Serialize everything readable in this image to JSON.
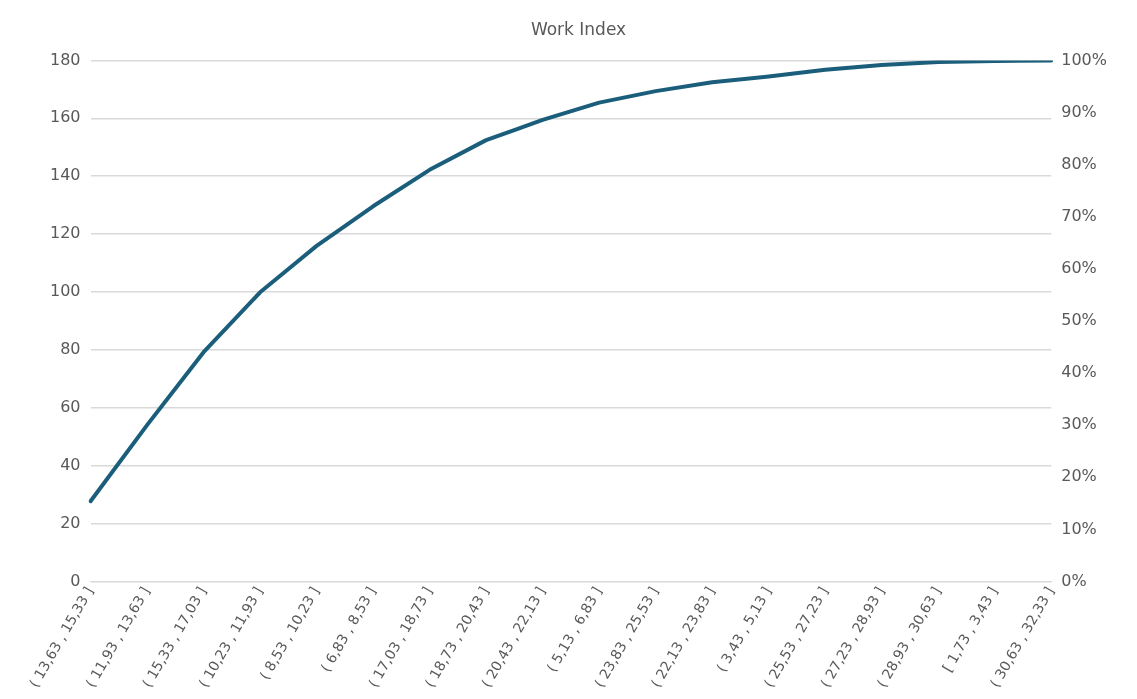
{
  "chart_data": {
    "type": "line",
    "title": "Work Index",
    "categories": [
      "( 13,63 , 15,33 ]",
      "( 11,93 , 13,63 ]",
      "( 15,33 , 17,03 ]",
      "( 10,23 , 11,93 ]",
      "( 8,53 , 10,23 ]",
      "( 6,83 , 8,53 ]",
      "( 17,03 , 18,73 ]",
      "( 18,73 , 20,43 ]",
      "( 20,43 , 22,13 ]",
      "( 5,13 , 6,83 ]",
      "( 23,83 , 25,53 ]",
      "( 22,13 , 23,83 ]",
      "( 3,43 , 5,13 ]",
      "( 25,53 , 27,23 ]",
      "( 27,23 , 28,93 ]",
      "( 28,93 , 30,63 ]",
      "[ 1,73 , 3,43 ]",
      "( 30,63 , 32,33 ]"
    ],
    "series": [
      {
        "color": "#1b5e7b",
        "axis": "y2",
        "values": [
          15.4,
          30,
          44,
          55.5,
          64.4,
          72,
          79,
          84.7,
          88.6,
          91.9,
          94.1,
          95.8,
          96.9,
          98.2,
          99.1,
          99.7,
          99.9,
          100
        ]
      }
    ],
    "ylim": [
      0,
      180
    ],
    "yticks": [
      0,
      20,
      40,
      60,
      80,
      100,
      120,
      140,
      160,
      180
    ],
    "y2lim": [
      0,
      100
    ],
    "y2ticks": [
      {
        "value": 0,
        "label": "0%"
      },
      {
        "value": 10,
        "label": "10%"
      },
      {
        "value": 20,
        "label": "20%"
      },
      {
        "value": 30,
        "label": "30%"
      },
      {
        "value": 40,
        "label": "40%"
      },
      {
        "value": 50,
        "label": "50%"
      },
      {
        "value": 60,
        "label": "60%"
      },
      {
        "value": 70,
        "label": "70%"
      },
      {
        "value": 80,
        "label": "80%"
      },
      {
        "value": 90,
        "label": "90%"
      },
      {
        "value": 100,
        "label": "100%"
      }
    ],
    "grid": "y",
    "marker": "none",
    "line_style": "solid"
  }
}
